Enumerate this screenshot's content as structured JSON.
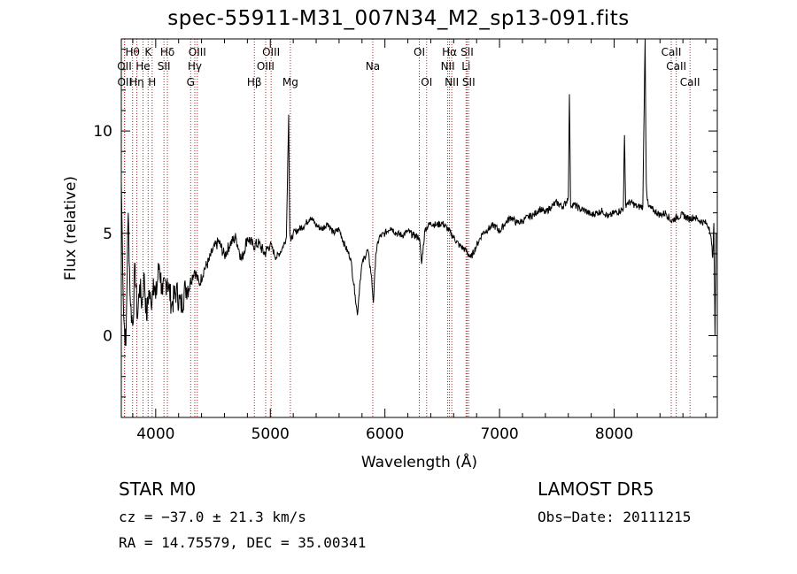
{
  "chart_data": {
    "type": "line",
    "title": "spec-55911-M31_007N34_M2_sp13-091.fits",
    "xlabel": "Wavelength (Å)",
    "ylabel": "Flux (relative)",
    "xlim": [
      3700,
      8900
    ],
    "ylim": [
      -4.0,
      14.5
    ],
    "xticks": [
      4000,
      5000,
      6000,
      7000,
      8000
    ],
    "yticks": [
      0,
      5,
      10
    ],
    "grid": false,
    "series": [
      {
        "values_note": "",
        "x": [
          3700,
          3720,
          3740,
          3760,
          3780,
          3800,
          3820,
          3840,
          3860,
          3880,
          3900,
          3920,
          3940,
          3960,
          3980,
          4000,
          4030,
          4060,
          4100,
          4140,
          4180,
          4220,
          4260,
          4300,
          4340,
          4380,
          4420,
          4460,
          4500,
          4550,
          4600,
          4650,
          4700,
          4750,
          4800,
          4850,
          4900,
          4950,
          5000,
          5050,
          5100,
          5140,
          5160,
          5170,
          5180,
          5200,
          5250,
          5300,
          5350,
          5400,
          5450,
          5500,
          5550,
          5600,
          5650,
          5700,
          5740,
          5760,
          5780,
          5800,
          5850,
          5880,
          5900,
          5920,
          5950,
          6000,
          6050,
          6100,
          6150,
          6200,
          6250,
          6300,
          6320,
          6350,
          6400,
          6450,
          6500,
          6550,
          6600,
          6650,
          6700,
          6750,
          6800,
          6850,
          6900,
          6950,
          7000,
          7050,
          7100,
          7150,
          7200,
          7250,
          7300,
          7350,
          7400,
          7450,
          7500,
          7550,
          7580,
          7600,
          7610,
          7620,
          7650,
          7700,
          7750,
          7800,
          7850,
          7900,
          7950,
          8000,
          8050,
          8080,
          8090,
          8100,
          8120,
          8150,
          8200,
          8250,
          8270,
          8280,
          8290,
          8300,
          8350,
          8400,
          8450,
          8500,
          8550,
          8600,
          8650,
          8700,
          8750,
          8800,
          8830,
          8850,
          8860,
          8870,
          8880,
          8890
        ],
        "y": [
          7.5,
          1.0,
          -0.5,
          6.0,
          1.5,
          0.5,
          3.5,
          0.8,
          2.5,
          1.5,
          3.0,
          0.8,
          2.2,
          1.5,
          2.8,
          1.8,
          3.5,
          2.0,
          2.8,
          1.5,
          2.2,
          1.4,
          2.3,
          2.6,
          3.2,
          2.5,
          3.2,
          3.6,
          4.2,
          4.6,
          3.9,
          4.5,
          4.8,
          3.7,
          4.8,
          4.4,
          4.5,
          4.0,
          4.5,
          3.8,
          4.2,
          4.8,
          10.8,
          5.0,
          4.6,
          5.0,
          5.2,
          5.4,
          5.8,
          5.4,
          5.2,
          5.5,
          5.0,
          5.2,
          4.4,
          3.8,
          2.0,
          1.0,
          2.5,
          3.5,
          4.2,
          3.0,
          1.6,
          4.0,
          4.8,
          5.0,
          5.3,
          5.0,
          4.9,
          5.1,
          4.9,
          4.8,
          3.5,
          5.2,
          5.5,
          5.4,
          5.5,
          5.2,
          4.8,
          4.4,
          4.2,
          3.8,
          4.4,
          5.0,
          5.2,
          5.4,
          5.1,
          5.5,
          5.8,
          5.5,
          5.6,
          5.8,
          5.9,
          6.2,
          6.0,
          6.3,
          6.5,
          6.3,
          6.5,
          6.8,
          11.8,
          6.4,
          6.4,
          6.2,
          6.1,
          5.9,
          6.0,
          6.1,
          5.8,
          6.0,
          6.1,
          6.2,
          9.8,
          6.4,
          6.5,
          6.5,
          6.3,
          6.3,
          14.5,
          7.5,
          6.6,
          6.3,
          6.1,
          5.9,
          6.0,
          5.6,
          5.8,
          5.9,
          5.7,
          5.8,
          5.6,
          5.5,
          5.3,
          4.5,
          3.8,
          5.5,
          0.0,
          5.0
        ]
      }
    ],
    "line_markers": [
      {
        "label": "Hθ",
        "x": 3798,
        "row": 1
      },
      {
        "label": "OII",
        "x": 3727,
        "row": 2
      },
      {
        "label": "OII",
        "x": 3729,
        "row": 3
      },
      {
        "label": "He",
        "x": 3889,
        "row": 2
      },
      {
        "label": "Hη",
        "x": 3835,
        "row": 3
      },
      {
        "label": "K",
        "x": 3934,
        "row": 1
      },
      {
        "label": "H",
        "x": 3969,
        "row": 3
      },
      {
        "label": "Hδ",
        "x": 4102,
        "row": 1
      },
      {
        "label": "SII",
        "x": 4072,
        "row": 2
      },
      {
        "label": "OIII",
        "x": 4363,
        "row": 1
      },
      {
        "label": "Hγ",
        "x": 4341,
        "row": 2
      },
      {
        "label": "G",
        "x": 4305,
        "row": 3
      },
      {
        "label": "Hβ",
        "x": 4861,
        "row": 3
      },
      {
        "label": "OIII",
        "x": 5007,
        "row": 1
      },
      {
        "label": "OIII",
        "x": 4959,
        "row": 2
      },
      {
        "label": "Mg",
        "x": 5175,
        "row": 3
      },
      {
        "label": "Na",
        "x": 5894,
        "row": 2
      },
      {
        "label": "OI",
        "x": 6300,
        "row": 1
      },
      {
        "label": "OI",
        "x": 6364,
        "row": 3
      },
      {
        "label": "Hα",
        "x": 6563,
        "row": 1
      },
      {
        "label": "SII",
        "x": 6717,
        "row": 1
      },
      {
        "label": "NII",
        "x": 6548,
        "row": 2
      },
      {
        "label": "Li",
        "x": 6708,
        "row": 2
      },
      {
        "label": "NII",
        "x": 6583,
        "row": 3
      },
      {
        "label": "SII",
        "x": 6731,
        "row": 3
      },
      {
        "label": "CaII",
        "x": 8498,
        "row": 1
      },
      {
        "label": "CaII",
        "x": 8542,
        "row": 2
      },
      {
        "label": "CaII",
        "x": 8662,
        "row": 3
      }
    ],
    "marker_color": "#b22222"
  },
  "info": {
    "class_line": "STAR     M0",
    "cz_line": "cz = −37.0 ± 21.3 km/s",
    "radec_line": "RA =  14.75579, DEC =  35.00341",
    "survey": "LAMOST DR5",
    "obs_date": "Obs−Date: 20111215"
  }
}
